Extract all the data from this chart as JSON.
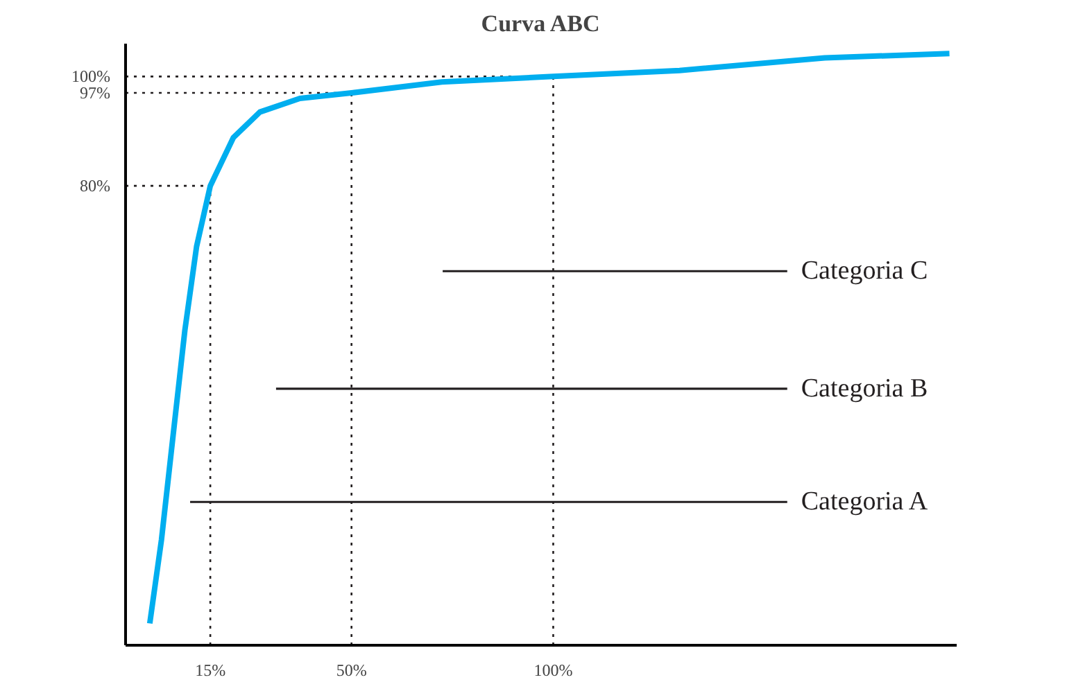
{
  "chart_data": {
    "type": "line",
    "title": "Curva ABC",
    "xlim": [
      -6,
      200
    ],
    "ylim": [
      -4,
      106
    ],
    "xticks": [
      {
        "value": 15,
        "label": "15%"
      },
      {
        "value": 50,
        "label": "50%"
      },
      {
        "value": 100,
        "label": "100%"
      }
    ],
    "yticks": [
      {
        "value": 80,
        "label": "80%"
      },
      {
        "value": 97,
        "label": "97%"
      },
      {
        "value": 100,
        "label": "100%"
      }
    ],
    "grid": false,
    "marker": "none",
    "line_style": "solid",
    "series": [
      {
        "color": "#00aeef",
        "x": [
          0,
          2.9,
          5.8,
          8.7,
          11.6,
          15,
          20.7,
          27.3,
          37.2,
          50,
          72.4,
          100,
          131.3,
          167.3,
          198.2
        ],
        "values": [
          0,
          15.3,
          34.5,
          53.6,
          68.9,
          80,
          88.8,
          93.5,
          96,
          97,
          99,
          100,
          101.1,
          103.4,
          104.2
        ]
      },
      {
        "name": "Categoria C",
        "color": "#231f20",
        "x": [
          72.6,
          158
        ],
        "values": [
          64.4,
          64.4
        ]
      },
      {
        "name": "Categoria B",
        "color": "#231f20",
        "x": [
          31.3,
          158
        ],
        "values": [
          42.9,
          42.9
        ]
      },
      {
        "name": "Categoria A",
        "color": "#231f20",
        "x": [
          10,
          158
        ],
        "values": [
          22.2,
          22.2
        ]
      }
    ],
    "ref_lines": [
      {
        "axis": "x",
        "value": 15,
        "line_style": "dotted",
        "color": "#231f20"
      },
      {
        "axis": "x",
        "value": 50,
        "line_style": "dotted",
        "color": "#231f20"
      },
      {
        "axis": "x",
        "value": 100,
        "line_style": "dotted",
        "color": "#231f20"
      },
      {
        "axis": "y",
        "value": 80,
        "line_style": "dotted",
        "color": "#231f20"
      },
      {
        "axis": "y",
        "value": 97,
        "line_style": "dotted",
        "color": "#231f20"
      },
      {
        "axis": "y",
        "value": 100,
        "line_style": "dotted",
        "color": "#231f20"
      }
    ]
  }
}
